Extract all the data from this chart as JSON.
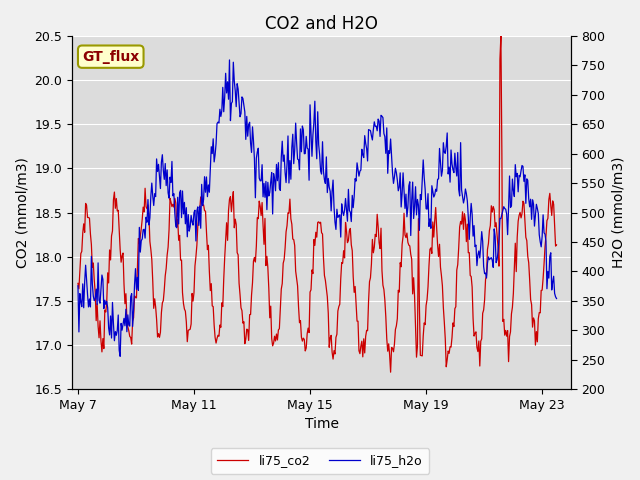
{
  "title": "CO2 and H2O",
  "xlabel": "Time",
  "ylabel_left": "CO2 (mmol/m3)",
  "ylabel_right": "H2O (mmol/m3)",
  "ylim_left": [
    16.5,
    20.5
  ],
  "ylim_right": [
    200,
    800
  ],
  "yticks_left": [
    16.5,
    17.0,
    17.5,
    18.0,
    18.5,
    19.0,
    19.5,
    20.0,
    20.5
  ],
  "yticks_right": [
    200,
    250,
    300,
    350,
    400,
    450,
    500,
    550,
    600,
    650,
    700,
    750,
    800
  ],
  "xtick_labels": [
    "May 7",
    "May 11",
    "May 15",
    "May 19",
    "May 23"
  ],
  "xtick_positions": [
    0,
    4,
    8,
    12,
    16
  ],
  "xlim": [
    -0.2,
    17.0
  ],
  "color_co2": "#cc0000",
  "color_h2o": "#0000cc",
  "legend_co2": "li75_co2",
  "legend_h2o": "li75_h2o",
  "annotation_text": "GT_flux",
  "bg_color": "#f0f0f0",
  "plot_bg_color": "#dcdcdc",
  "title_fontsize": 12,
  "axis_label_fontsize": 10,
  "tick_fontsize": 9,
  "legend_fontsize": 9
}
